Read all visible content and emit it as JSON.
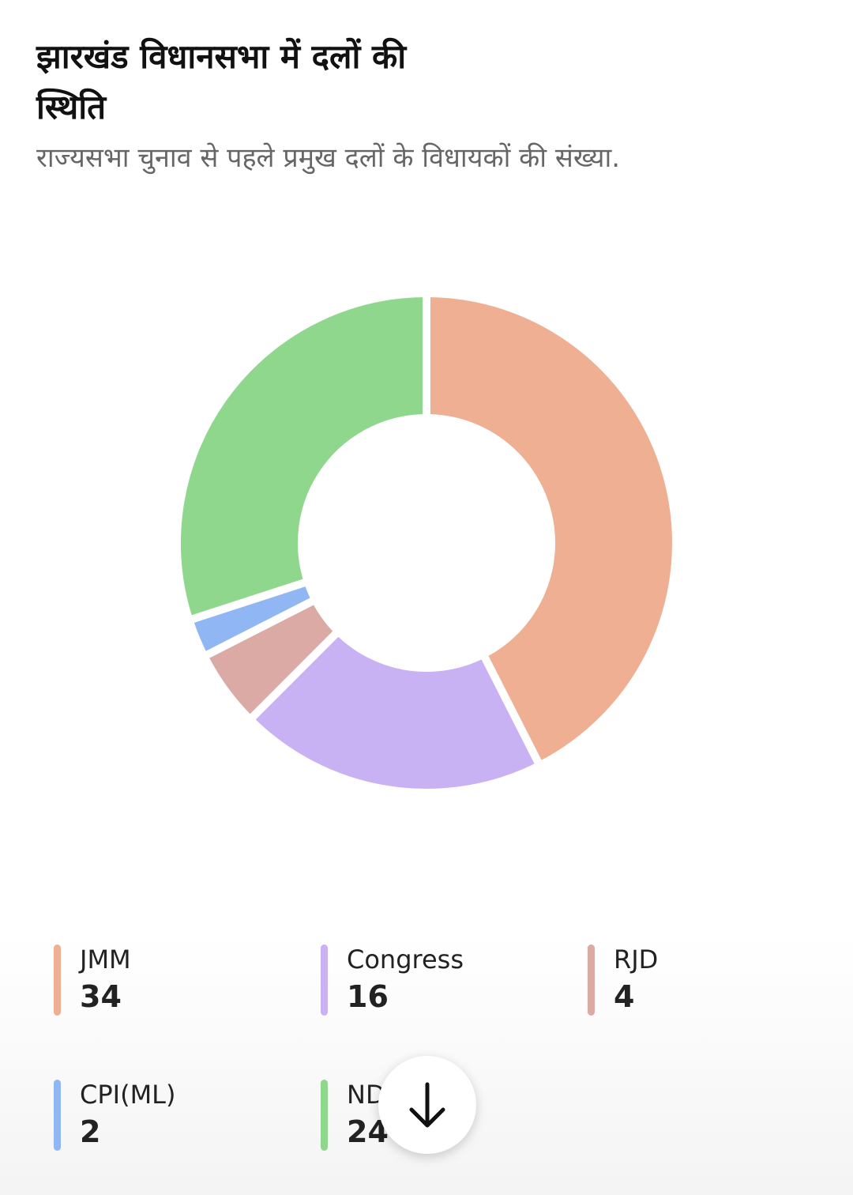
{
  "chart_data": {
    "type": "donut",
    "title": "झारखंड विधानसभा में दलों की स्थिति",
    "subtitle": "राज्यसभा चुनाव से पहले प्रमुख दलों के विधायकों की संख्या.",
    "categories": [
      "JMM",
      "Congress",
      "RJD",
      "CPI(ML)",
      "NDA"
    ],
    "values": [
      34,
      16,
      4,
      2,
      24
    ],
    "colors": [
      "#efaf92",
      "#c8b2f4",
      "#dcaaa5",
      "#90b7f4",
      "#90d78e"
    ]
  }
}
